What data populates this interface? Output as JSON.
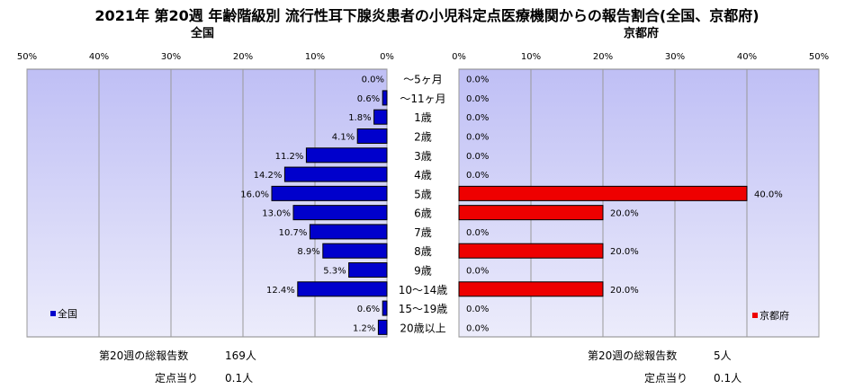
{
  "title": "2021年 第20週 年齢階級別 流行性耳下腺炎患者の小児科定点医療機関からの報告割合(全国、京都府)",
  "left_panel_label": "全国",
  "right_panel_label": "京都府",
  "colors": {
    "national": "#0000cc",
    "kyoto": "#ee0000",
    "plot_bg_top": "#bfbff5",
    "plot_bg_bottom": "#ececfb",
    "grid": "#999999"
  },
  "chart_data": {
    "type": "bar",
    "orientation": "horizontal-butterfly",
    "categories": [
      "～5ヶ月",
      "～11ヶ月",
      "1歳",
      "2歳",
      "3歳",
      "4歳",
      "5歳",
      "6歳",
      "7歳",
      "8歳",
      "9歳",
      "10～14歳",
      "15～19歳",
      "20歳以上"
    ],
    "series": [
      {
        "name": "全国",
        "values": [
          0.0,
          0.6,
          1.8,
          4.1,
          11.2,
          14.2,
          16.0,
          13.0,
          10.7,
          8.9,
          5.3,
          12.4,
          0.6,
          1.2
        ],
        "labels": [
          "0.0%",
          "0.6%",
          "1.8%",
          "4.1%",
          "11.2%",
          "14.2%",
          "16.0%",
          "13.0%",
          "10.7%",
          "8.9%",
          "5.3%",
          "12.4%",
          "0.6%",
          "1.2%"
        ]
      },
      {
        "name": "京都府",
        "values": [
          0.0,
          0.0,
          0.0,
          0.0,
          0.0,
          0.0,
          40.0,
          20.0,
          0.0,
          20.0,
          0.0,
          20.0,
          0.0,
          0.0
        ],
        "labels": [
          "0.0%",
          "0.0%",
          "0.0%",
          "0.0%",
          "0.0%",
          "0.0%",
          "40.0%",
          "20.0%",
          "0.0%",
          "20.0%",
          "0.0%",
          "20.0%",
          "0.0%",
          "0.0%"
        ]
      }
    ],
    "xlim": [
      0,
      50
    ],
    "left_ticks": [
      "50%",
      "40%",
      "30%",
      "20%",
      "10%",
      "0%"
    ],
    "right_ticks": [
      "0%",
      "10%",
      "20%",
      "30%",
      "40%",
      "50%"
    ],
    "grid": true,
    "legend": [
      "bottom-left",
      "bottom-right"
    ]
  },
  "stats": {
    "national_total_label": "第20週の総報告数",
    "national_total_value": "169人",
    "national_per_label": "定点当り",
    "national_per_value": "0.1人",
    "kyoto_total_label": "第20週の総報告数",
    "kyoto_total_value": "5人",
    "kyoto_per_label": "定点当り",
    "kyoto_per_value": "0.1人"
  }
}
